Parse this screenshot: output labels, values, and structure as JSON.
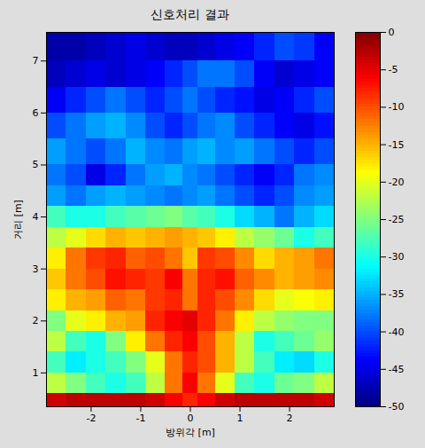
{
  "chart_data": {
    "type": "heatmap",
    "title": "신호처리 결과",
    "xlabel": "방위각 [m]",
    "ylabel": "거리 [m]",
    "xlim": [
      -2.9,
      2.9
    ],
    "ylim": [
      0.35,
      7.55
    ],
    "xticks": [
      -2,
      -1,
      0,
      1,
      2
    ],
    "yticks": [
      1,
      2,
      3,
      4,
      5,
      6,
      7
    ],
    "color": "jet",
    "clim": [
      -50,
      0
    ],
    "cticks": [
      0,
      -5,
      -10,
      -15,
      -20,
      -25,
      -30,
      -35,
      -40,
      -45,
      -50
    ],
    "x_edges": [
      -2.9,
      -2.5,
      -2.1,
      -1.7,
      -1.3,
      -0.9,
      -0.5,
      -0.15,
      0.15,
      0.5,
      0.9,
      1.3,
      1.7,
      2.1,
      2.5,
      2.9
    ],
    "y_edges": [
      0.35,
      0.6,
      1.0,
      1.4,
      1.8,
      2.2,
      2.6,
      3.0,
      3.4,
      3.8,
      4.2,
      4.6,
      5.0,
      5.5,
      6.0,
      6.5,
      7.0,
      7.55
    ],
    "cells": [
      [
        -4,
        -3,
        -3,
        -3,
        -3,
        -4,
        -6,
        -8,
        -6,
        -4,
        -3,
        -3,
        -3,
        -3,
        -4
      ],
      [
        -22,
        -25,
        -28,
        -30,
        -28,
        -22,
        -12,
        -6,
        -12,
        -20,
        -28,
        -30,
        -26,
        -25,
        -22
      ],
      [
        -28,
        -32,
        -30,
        -28,
        -25,
        -20,
        -12,
        -8,
        -10,
        -15,
        -22,
        -28,
        -32,
        -33,
        -30
      ],
      [
        -22,
        -28,
        -30,
        -25,
        -18,
        -12,
        -8,
        -6,
        -10,
        -15,
        -22,
        -30,
        -28,
        -26,
        -24
      ],
      [
        -25,
        -20,
        -18,
        -15,
        -14,
        -8,
        -6,
        -5,
        -8,
        -12,
        -18,
        -22,
        -24,
        -25,
        -25
      ],
      [
        -18,
        -15,
        -14,
        -11,
        -12,
        -9,
        -8,
        -12,
        -8,
        -10,
        -13,
        -17,
        -20,
        -19,
        -18
      ],
      [
        -16,
        -12,
        -10,
        -7,
        -8,
        -9,
        -6,
        -12,
        -8,
        -7,
        -11,
        -13,
        -15,
        -14,
        -13
      ],
      [
        -18,
        -12,
        -9,
        -8,
        -11,
        -10,
        -12,
        -16,
        -9,
        -10,
        -13,
        -17,
        -15,
        -14,
        -12
      ],
      [
        -22,
        -20,
        -17,
        -15,
        -16,
        -15,
        -14,
        -15,
        -16,
        -18,
        -22,
        -24,
        -26,
        -30,
        -28
      ],
      [
        -28,
        -30,
        -30,
        -28,
        -27,
        -26,
        -25,
        -27,
        -28,
        -30,
        -33,
        -35,
        -38,
        -35,
        -33
      ],
      [
        -36,
        -38,
        -36,
        -35,
        -36,
        -37,
        -38,
        -37,
        -36,
        -38,
        -40,
        -42,
        -40,
        -37,
        -36
      ],
      [
        -38,
        -40,
        -45,
        -42,
        -38,
        -36,
        -35,
        -37,
        -38,
        -40,
        -42,
        -44,
        -42,
        -38,
        -37
      ],
      [
        -36,
        -38,
        -40,
        -38,
        -35,
        -37,
        -38,
        -36,
        -35,
        -37,
        -36,
        -38,
        -40,
        -42,
        -40
      ],
      [
        -40,
        -38,
        -36,
        -35,
        -37,
        -40,
        -42,
        -40,
        -38,
        -37,
        -40,
        -42,
        -44,
        -45,
        -43
      ],
      [
        -44,
        -42,
        -40,
        -38,
        -40,
        -42,
        -40,
        -38,
        -40,
        -42,
        -43,
        -45,
        -44,
        -42,
        -40
      ],
      [
        -47,
        -46,
        -45,
        -46,
        -45,
        -44,
        -42,
        -40,
        -38,
        -38,
        -40,
        -44,
        -46,
        -45,
        -44
      ],
      [
        -48,
        -48,
        -47,
        -46,
        -45,
        -46,
        -47,
        -47,
        -46,
        -45,
        -44,
        -42,
        -40,
        -41,
        -44
      ]
    ]
  }
}
